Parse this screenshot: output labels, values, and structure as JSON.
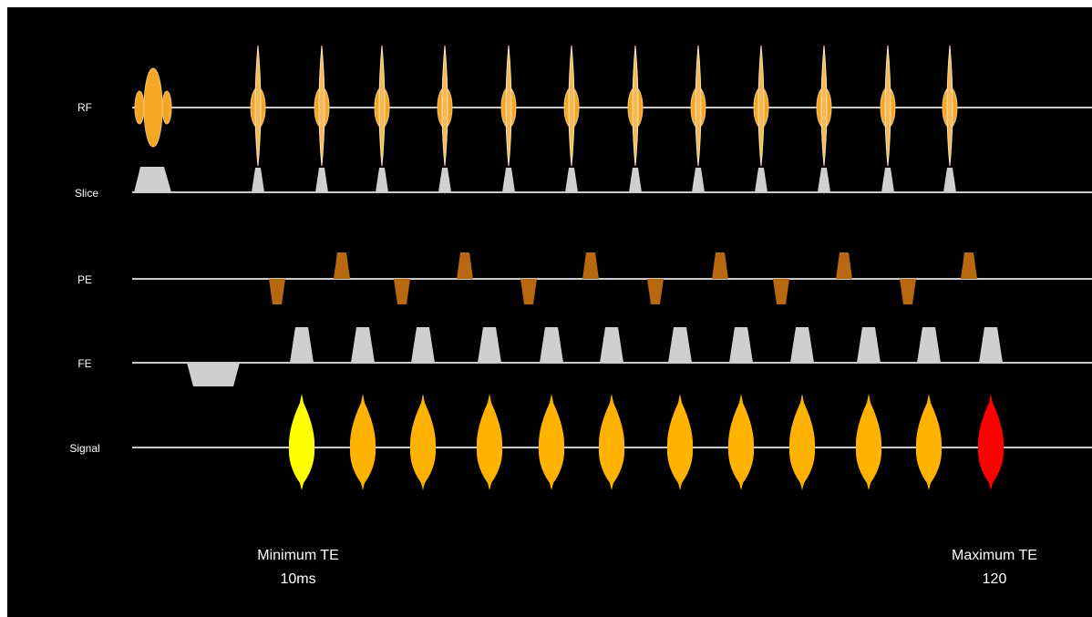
{
  "rows": {
    "rf": "RF",
    "slice": "Slice",
    "pe": "PE",
    "fe": "FE",
    "signal": "Signal"
  },
  "annotations": {
    "min_te_title": "Minimum TE",
    "min_te_value": "10ms",
    "max_te_title": "Maximum TE",
    "max_te_value": "120"
  },
  "colors": {
    "background": "#000000",
    "baseline": "#c9c9c9",
    "rf_pulse": "#f5a623",
    "gradient": "#cfcfcf",
    "pe_gradient": "#b8690f",
    "signal_first": "#ffff00",
    "signal_echo": "#ffb300",
    "signal_last": "#ff0000"
  },
  "sequence": {
    "refocusing_pulses": 12,
    "echoes": 12,
    "highlight_first_echo": "min-te",
    "highlight_last_echo": "max-te"
  }
}
